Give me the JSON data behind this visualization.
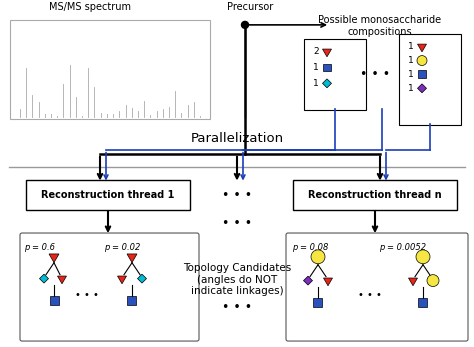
{
  "title": "",
  "bg_color": "#ffffff",
  "spectrum_label": "MS/MS spectrum",
  "precursor_label": "Precursor",
  "possible_label": "Possible monosaccharide\ncompositions",
  "parallelization_label": "Parallelization",
  "thread1_label": "Reconstruction thread 1",
  "threadn_label": "Reconstruction thread n",
  "topology_label": "Topology Candidates\n(angles do NOT\nindicate linkages)",
  "dots": "• • •",
  "p1": "p = 0.6",
  "p2": "p = 0.02",
  "p3": "p = 0.08",
  "p4": "p = 0.0052",
  "red_tri_color": "#e8251a",
  "blue_sq_color": "#2a52be",
  "cyan_diamond_color": "#00bcd4",
  "yellow_circle_color": "#f5e642",
  "purple_diamond_color": "#7b2fbe",
  "arrow_black": "#000000",
  "arrow_blue": "#1a3eb8",
  "box_outline": "#000000",
  "gray_sep_color": "#888888"
}
